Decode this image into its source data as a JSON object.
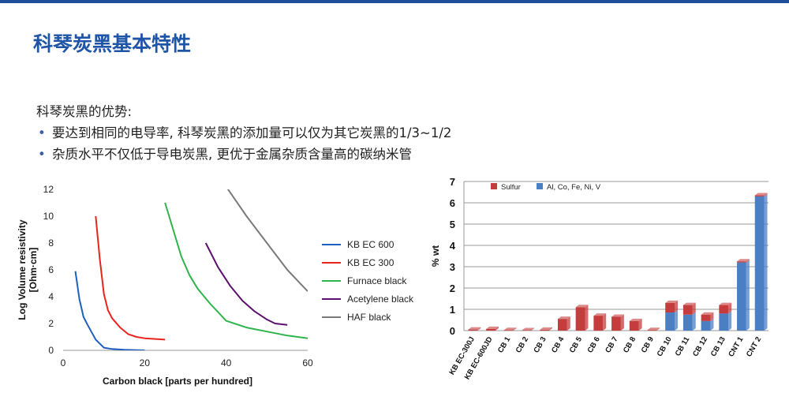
{
  "title": "科琴炭黑基本特性",
  "intro": "科琴炭黑的优势:",
  "bullets": [
    "要达到相同的电导率, 科琴炭黑的添加量可以仅为其它炭黑的1/3~1/2",
    "杂质水平不仅低于导电炭黑, 更优于金属杂质含量高的碳纳米管"
  ],
  "chart_data": [
    {
      "type": "line",
      "xlabel": "Carbon black [parts per hundred]",
      "ylabel": "Log Volume resistivity [Ohm·cm]",
      "xlim": [
        0,
        60
      ],
      "ylim": [
        0,
        12
      ],
      "xticks": [
        0,
        20,
        40,
        60
      ],
      "yticks": [
        0,
        2,
        4,
        6,
        8,
        10,
        12
      ],
      "grid": false,
      "legend": "right",
      "series": [
        {
          "name": "KB EC 600",
          "color": "#1f5fbf",
          "x": [
            3,
            4,
            5,
            6,
            8,
            10,
            12,
            15,
            20
          ],
          "y": [
            5.9,
            3.8,
            2.5,
            1.9,
            0.8,
            0.2,
            0.1,
            0.05,
            0.0
          ]
        },
        {
          "name": "KB EC 300",
          "color": "#e8241c",
          "x": [
            8,
            9,
            10,
            11,
            12,
            14,
            16,
            18,
            20,
            25
          ],
          "y": [
            10.0,
            6.8,
            4.2,
            3.0,
            2.4,
            1.7,
            1.2,
            1.0,
            0.9,
            0.8
          ]
        },
        {
          "name": "Furnace black",
          "color": "#2fb34a",
          "x": [
            25,
            27,
            29,
            31,
            33,
            36,
            40,
            45,
            50,
            55,
            60
          ],
          "y": [
            11.0,
            9.0,
            7.0,
            5.6,
            4.6,
            3.5,
            2.2,
            1.7,
            1.4,
            1.1,
            0.9
          ]
        },
        {
          "name": "Acetylene black",
          "color": "#5c0f6e",
          "x": [
            35,
            38,
            41,
            44,
            47,
            50,
            52,
            55
          ],
          "y": [
            8.0,
            6.2,
            4.8,
            3.7,
            2.9,
            2.3,
            2.0,
            1.9
          ]
        },
        {
          "name": "HAF black",
          "color": "#7a7a7a",
          "x": [
            40,
            45,
            50,
            55,
            60
          ],
          "y": [
            12.2,
            10.0,
            8.0,
            6.0,
            4.4
          ]
        }
      ]
    },
    {
      "type": "bar",
      "stacked": true,
      "ylabel": "% wt",
      "ylim": [
        0,
        7
      ],
      "yticks": [
        0,
        1,
        2,
        3,
        4,
        5,
        6,
        7
      ],
      "grid": true,
      "legend": "top-left",
      "categories": [
        "KB EC-300J",
        "KB EC-600JD",
        "CB 1",
        "CB 2",
        "CB 3",
        "CB 4",
        "CB 5",
        "CB 6",
        "CB 7",
        "CB 8",
        "CB 9",
        "CB 10",
        "CB 11",
        "CB 12",
        "CB 13",
        "CNT 1",
        "CNT 2"
      ],
      "series": [
        {
          "name": "Al, Co, Fe, Ni, V",
          "color": "#4a7fc4",
          "values": [
            0,
            0,
            0,
            0,
            0,
            0,
            0,
            0,
            0,
            0,
            0,
            0.85,
            0.75,
            0.45,
            0.8,
            3.2,
            6.3
          ]
        },
        {
          "name": "Sulfur",
          "color": "#c43c3c",
          "values": [
            0.05,
            0.08,
            0.03,
            0.02,
            0.04,
            0.55,
            1.1,
            0.7,
            0.65,
            0.45,
            0.03,
            0.45,
            0.45,
            0.3,
            0.4,
            0.05,
            0.05
          ]
        }
      ]
    }
  ]
}
